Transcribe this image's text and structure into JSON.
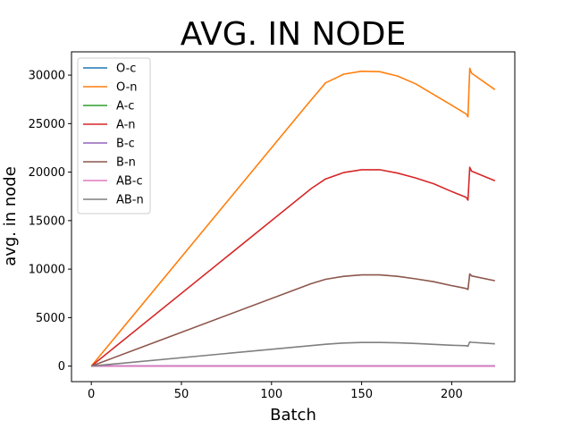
{
  "chart_data": {
    "type": "line",
    "title": "AVG. IN NODE",
    "xlabel": "Batch",
    "ylabel": "avg. in node",
    "xlim": [
      -11,
      235
    ],
    "ylim": [
      -1600,
      32400
    ],
    "xticks": [
      0,
      50,
      100,
      150,
      200
    ],
    "yticks": [
      0,
      5000,
      10000,
      15000,
      20000,
      25000,
      30000
    ],
    "grid": false,
    "legend_position": "top-left",
    "series": [
      {
        "name": "O-c",
        "color": "#1f77b4",
        "points": [
          [
            0,
            0
          ],
          [
            224,
            0
          ]
        ]
      },
      {
        "name": "O-n",
        "color": "#ff7f0e",
        "points": [
          [
            0,
            0
          ],
          [
            120,
            27000
          ],
          [
            130,
            29200
          ],
          [
            140,
            30100
          ],
          [
            150,
            30400
          ],
          [
            160,
            30350
          ],
          [
            170,
            29900
          ],
          [
            180,
            29100
          ],
          [
            190,
            28000
          ],
          [
            200,
            26900
          ],
          [
            208,
            26000
          ],
          [
            209,
            25700
          ],
          [
            210,
            30700
          ],
          [
            211,
            30200
          ],
          [
            224,
            28500
          ]
        ]
      },
      {
        "name": "A-c",
        "color": "#2ca02c",
        "points": [
          [
            0,
            0
          ],
          [
            224,
            0
          ]
        ]
      },
      {
        "name": "A-n",
        "color": "#d62728",
        "points": [
          [
            0,
            0
          ],
          [
            122,
            18300
          ],
          [
            130,
            19300
          ],
          [
            140,
            19950
          ],
          [
            150,
            20250
          ],
          [
            160,
            20250
          ],
          [
            170,
            19900
          ],
          [
            180,
            19400
          ],
          [
            190,
            18800
          ],
          [
            200,
            18000
          ],
          [
            208,
            17400
          ],
          [
            209,
            17100
          ],
          [
            210,
            20500
          ],
          [
            211,
            20100
          ],
          [
            224,
            19100
          ]
        ]
      },
      {
        "name": "B-c",
        "color": "#9467bd",
        "points": [
          [
            0,
            0
          ],
          [
            224,
            0
          ]
        ]
      },
      {
        "name": "B-n",
        "color": "#8c564b",
        "points": [
          [
            0,
            0
          ],
          [
            122,
            8500
          ],
          [
            130,
            8950
          ],
          [
            140,
            9250
          ],
          [
            150,
            9400
          ],
          [
            160,
            9400
          ],
          [
            170,
            9250
          ],
          [
            180,
            9000
          ],
          [
            190,
            8700
          ],
          [
            200,
            8300
          ],
          [
            208,
            8000
          ],
          [
            209,
            7900
          ],
          [
            210,
            9500
          ],
          [
            211,
            9300
          ],
          [
            224,
            8800
          ]
        ]
      },
      {
        "name": "AB-c",
        "color": "#e377c2",
        "points": [
          [
            0,
            0
          ],
          [
            224,
            0
          ]
        ]
      },
      {
        "name": "AB-n",
        "color": "#7f7f7f",
        "points": [
          [
            0,
            0
          ],
          [
            130,
            2250
          ],
          [
            140,
            2380
          ],
          [
            150,
            2440
          ],
          [
            160,
            2440
          ],
          [
            170,
            2400
          ],
          [
            180,
            2330
          ],
          [
            190,
            2240
          ],
          [
            200,
            2150
          ],
          [
            208,
            2100
          ],
          [
            209,
            2050
          ],
          [
            210,
            2500
          ],
          [
            211,
            2450
          ],
          [
            224,
            2300
          ]
        ]
      }
    ]
  }
}
